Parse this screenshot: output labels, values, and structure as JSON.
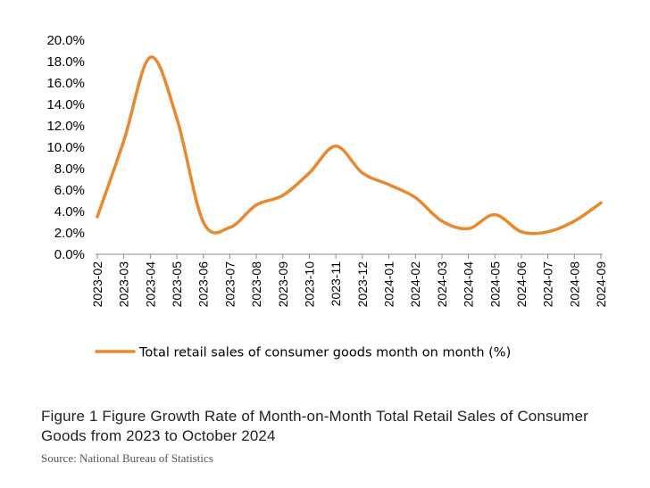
{
  "chart_data": {
    "type": "line",
    "categories": [
      "2023-02",
      "2023-03",
      "2023-04",
      "2023-05",
      "2023-06",
      "2023-07",
      "2023-08",
      "2023-09",
      "2023-10",
      "2023-11",
      "2023-12",
      "2024-01",
      "2024-02",
      "2024-03",
      "2024-04",
      "2024-05",
      "2024-06",
      "2024-07",
      "2024-08",
      "2024-09"
    ],
    "series": [
      {
        "name": "Total retail sales of consumer goods month on month (%)",
        "values": [
          3.5,
          10.6,
          18.4,
          12.7,
          3.0,
          2.5,
          4.6,
          5.5,
          7.6,
          10.1,
          7.6,
          6.5,
          5.3,
          3.1,
          2.4,
          3.7,
          2.1,
          2.1,
          3.1,
          4.8
        ],
        "color": "#E8892F"
      }
    ],
    "yticks": [
      "0.0%",
      "2.0%",
      "4.0%",
      "6.0%",
      "8.0%",
      "10.0%",
      "12.0%",
      "14.0%",
      "16.0%",
      "18.0%",
      "20.0%"
    ],
    "ylim": [
      0,
      20
    ],
    "legend_position": "bottom",
    "grid": false
  },
  "caption": "Figure 1 Figure Growth Rate of Month-on-Month Total Retail Sales of Consumer Goods from 2023 to October 2024",
  "source": "Source: National Bureau of Statistics"
}
